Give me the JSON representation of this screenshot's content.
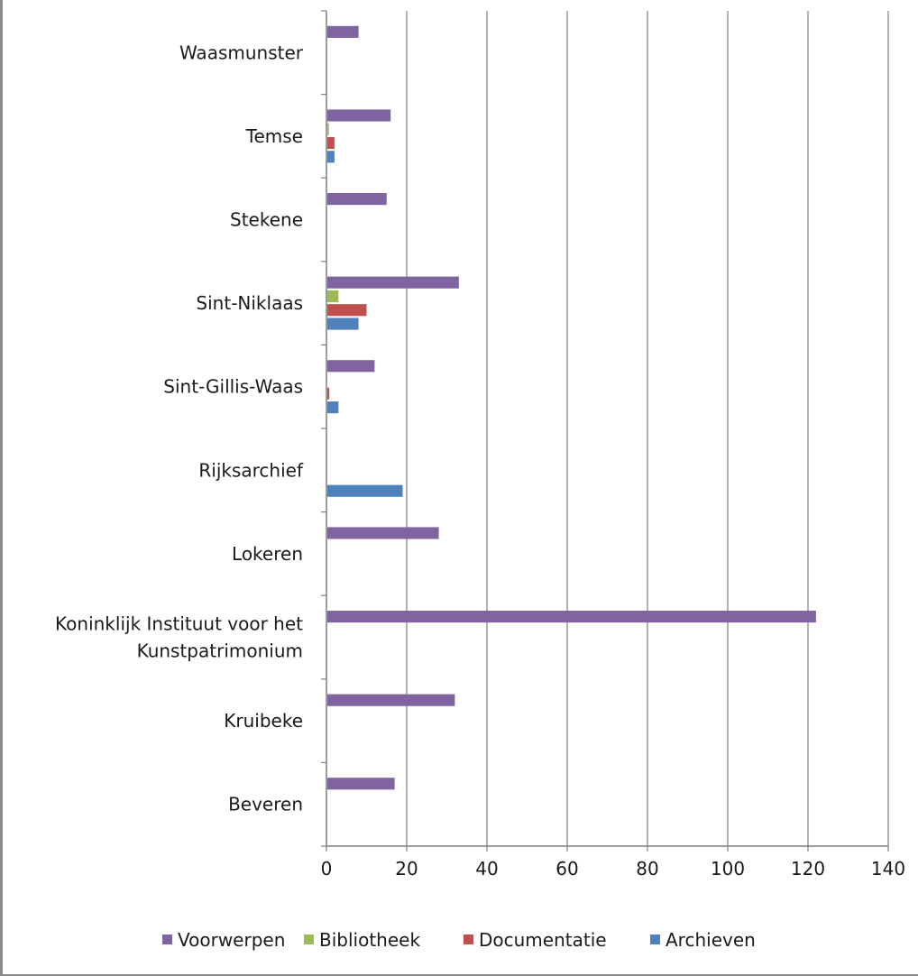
{
  "chart_data": {
    "type": "bar",
    "orientation": "horizontal",
    "title": "",
    "xlabel": "",
    "ylabel": "",
    "xlim": [
      0,
      140
    ],
    "x_ticks": [
      "0",
      "20",
      "40",
      "60",
      "80",
      "100",
      "120",
      "140"
    ],
    "grid": "vertical gridlines",
    "legend_position": "bottom",
    "categories": [
      [
        "Waasmunster"
      ],
      [
        "Temse"
      ],
      [
        "Stekene"
      ],
      [
        "Sint-Niklaas"
      ],
      [
        "Sint-Gillis-Waas"
      ],
      [
        "Rijksarchief"
      ],
      [
        "Lokeren"
      ],
      [
        "Koninklijk Instituut voor het",
        "Kunstpatrimonium"
      ],
      [
        "Kruibeke"
      ],
      [
        "Beveren"
      ]
    ],
    "series": [
      {
        "name": "Voorwerpen",
        "color": "#8064A2",
        "values": [
          8,
          16,
          15,
          33,
          12,
          0,
          28,
          122,
          32,
          17
        ]
      },
      {
        "name": "Bibliotheek",
        "color": "#9BBB59",
        "values": [
          0,
          0.6,
          0,
          3,
          0,
          0,
          0,
          0,
          0,
          0
        ]
      },
      {
        "name": "Documentatie",
        "color": "#C0504D",
        "values": [
          0,
          2,
          0,
          10,
          0.7,
          0,
          0,
          0,
          0,
          0
        ]
      },
      {
        "name": "Archieven",
        "color": "#4F81BD",
        "values": [
          0,
          2,
          0,
          8,
          3,
          19,
          0,
          0,
          0,
          0
        ]
      }
    ]
  }
}
